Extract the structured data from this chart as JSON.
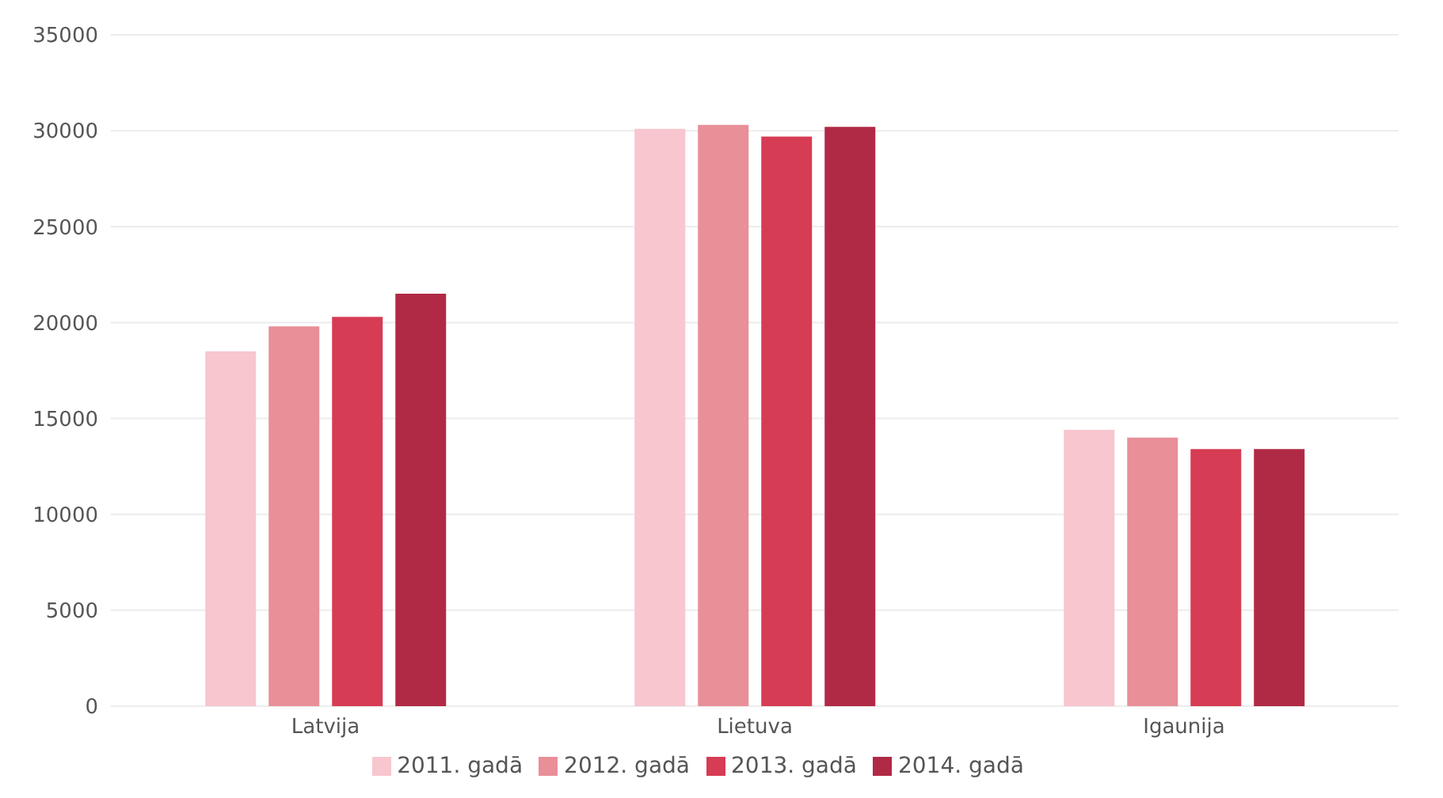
{
  "chart_data": {
    "type": "bar",
    "categories": [
      "Latvija",
      "Lietuva",
      "Igaunija"
    ],
    "series": [
      {
        "name": "2011. gadā",
        "color": "#f7c6cf",
        "values": [
          18500,
          30100,
          14400
        ]
      },
      {
        "name": "2012. gadā",
        "color": "#e88f98",
        "values": [
          19800,
          30300,
          14000
        ]
      },
      {
        "name": "2013. gadā",
        "color": "#d63c54",
        "values": [
          20300,
          29700,
          13400
        ]
      },
      {
        "name": "2014. gadā",
        "color": "#b02a45",
        "values": [
          21500,
          30200,
          13400
        ]
      }
    ],
    "ylim": [
      0,
      35000
    ],
    "yticks": [
      0,
      5000,
      10000,
      15000,
      20000,
      25000,
      30000,
      35000
    ],
    "grid": "y",
    "legend": "bottom"
  }
}
